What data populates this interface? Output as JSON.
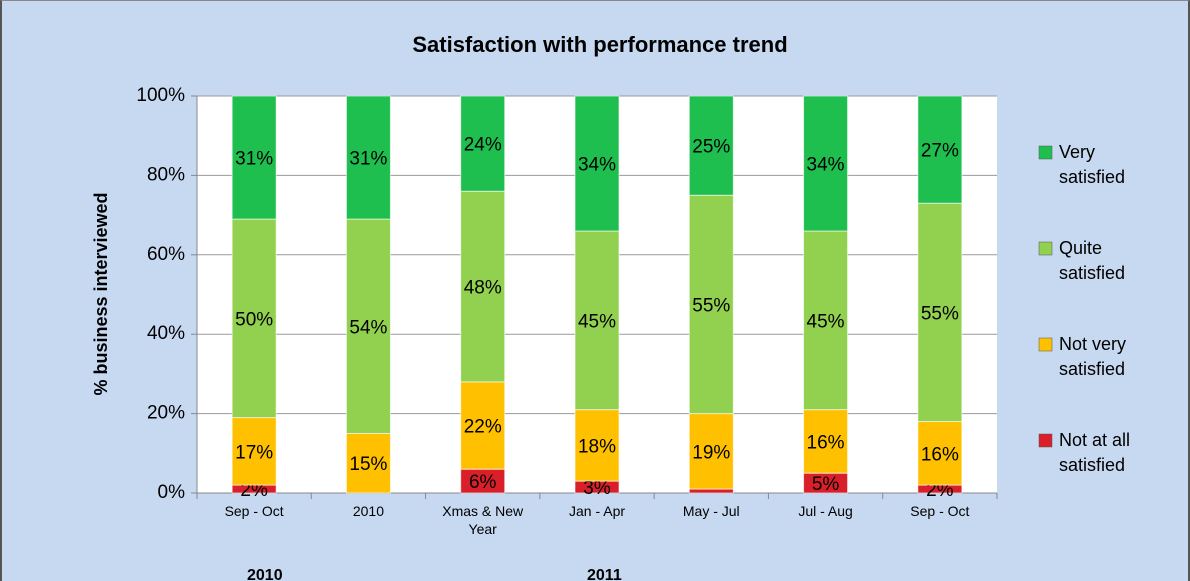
{
  "chart_data": {
    "type": "stacked_bar",
    "title": "Satisfaction with performance trend",
    "y_label": "% business interviewed",
    "categories": [
      "Sep - Oct",
      "2010",
      "Xmas & New Year",
      "Jan - Apr",
      "May - Jul",
      "Jul - Aug",
      "Sep - Oct"
    ],
    "groups": [
      "2010",
      "2011"
    ],
    "series": [
      {
        "name": "Not at all satisfied",
        "color": "#d9202a",
        "values": [
          2,
          0,
          6,
          3,
          1,
          5,
          2
        ],
        "value_labels": [
          "2%",
          null,
          "6%",
          "3%",
          null,
          "5%",
          "2%"
        ]
      },
      {
        "name": "Not very satisfied",
        "color": "#ffc000",
        "values": [
          17,
          15,
          22,
          18,
          19,
          16,
          16
        ],
        "value_labels": [
          "17%",
          "15%",
          "22%",
          "18%",
          "19%",
          "16%",
          "16%"
        ]
      },
      {
        "name": "Quite satisfied",
        "color": "#92d050",
        "values": [
          50,
          54,
          48,
          45,
          55,
          45,
          55
        ],
        "value_labels": [
          "50%",
          "54%",
          "48%",
          "45%",
          "55%",
          "45%",
          "55%"
        ]
      },
      {
        "name": "Very satisfied",
        "color": "#1fbf4f",
        "values": [
          31,
          31,
          24,
          34,
          25,
          34,
          27
        ],
        "value_labels": [
          "31%",
          "31%",
          "24%",
          "34%",
          "25%",
          "34%",
          "27%"
        ]
      }
    ],
    "ylim": [
      0,
      100
    ],
    "yticks": [
      {
        "value": 0,
        "label": "0%"
      },
      {
        "value": 20,
        "label": "20%"
      },
      {
        "value": 40,
        "label": "40%"
      },
      {
        "value": 60,
        "label": "60%"
      },
      {
        "value": 80,
        "label": "80%"
      },
      {
        "value": 100,
        "label": "100%"
      }
    ],
    "grid": true,
    "legend": "right"
  }
}
